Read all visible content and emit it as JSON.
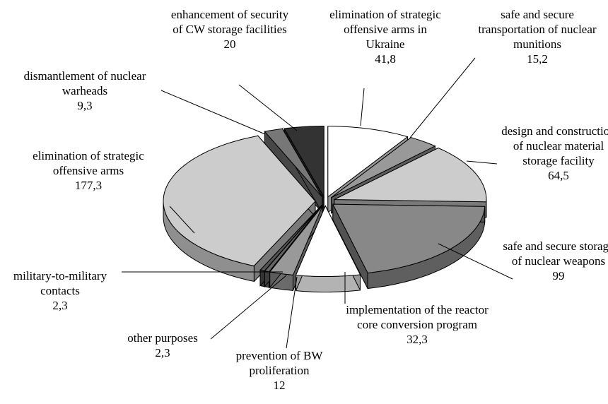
{
  "chart_data": {
    "type": "pie3d",
    "categories": [
      "elimination of strategic offensive arms in Ukraine",
      "safe and secure transportation of nuclear munitions",
      "design and construction of nuclear material storage facility",
      "safe and secure storage of nuclear weapons",
      "implementation of the reactor core conversion program",
      "prevention of BW proliferation",
      "other purposes",
      "military-to-military contacts",
      "elimination of strategic offensive arms",
      "dismantlement of nuclear warheads",
      "enhancement of security of CW storage facilities"
    ],
    "values": [
      41.8,
      15.2,
      64.5,
      99,
      32.3,
      12,
      2.3,
      2.3,
      177.3,
      9.3,
      20
    ],
    "value_labels": [
      "41,8",
      "15,2",
      "64,5",
      "99",
      "32,3",
      "12",
      "2,3",
      "2,3",
      "177,3",
      "9,3",
      "20"
    ],
    "colors": [
      "#ffffff",
      "#999999",
      "#cccccc",
      "#888888",
      "#ffffff",
      "#999999",
      "#666666",
      "#555555",
      "#cccccc",
      "#777777",
      "#333333"
    ]
  }
}
